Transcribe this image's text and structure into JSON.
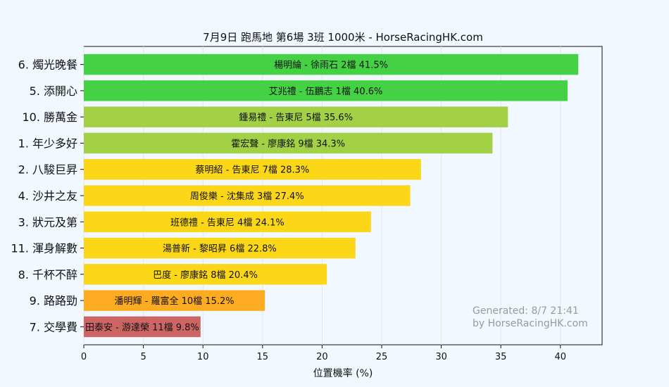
{
  "chart_data": {
    "type": "bar",
    "orientation": "horizontal",
    "title": "7月9日  跑馬地  第6場  3班  1000米 - HorseRacingHK.com",
    "xlabel": "位置機率 (%)",
    "ylabel": "",
    "xlim": [
      0,
      43.5
    ],
    "xticks": [
      "0",
      "5",
      "10",
      "15",
      "20",
      "25",
      "30",
      "35",
      "40"
    ],
    "grid": true,
    "categories": [
      "6. 燭光晚餐",
      "5. 添開心",
      "10. 勝萬金",
      "1. 年少多好",
      "2. 八駿巨昇",
      "4. 沙井之友",
      "3. 狀元及第",
      "11. 渾身解數",
      "8. 千杯不醉",
      "9. 路路勁",
      "7. 交學費"
    ],
    "values": [
      41.5,
      40.6,
      35.6,
      34.3,
      28.3,
      27.4,
      24.1,
      22.8,
      20.4,
      15.2,
      9.8
    ],
    "bar_labels": [
      "楊明綸 - 徐雨石 2檔  41.5%",
      "艾兆禮 - 伍鵬志 1檔  40.6%",
      "鍾易禮 - 告東尼 5檔  35.6%",
      "霍宏聲 - 廖康銘 9檔  34.3%",
      "蔡明紹 - 告東尼 7檔  28.3%",
      "周俊樂 - 沈集成 3檔  27.4%",
      "班德禮 - 告東尼 4檔  24.1%",
      "湯普新 - 黎昭昇 6檔  22.8%",
      "巴度 - 廖康銘 8檔  20.4%",
      "潘明輝 - 羅富全 10檔  15.2%",
      "田泰安 - 游達榮 11檔  9.8%"
    ],
    "colors": [
      "#44d244",
      "#44d244",
      "#a2d145",
      "#a2d145",
      "#fcd717",
      "#fcd717",
      "#fcd717",
      "#fcd717",
      "#fcd717",
      "#fdab20",
      "#cd6565"
    ]
  },
  "watermark": {
    "line1": "Generated: 8/7 21:41",
    "line2": "by HorseRacingHK.com"
  }
}
